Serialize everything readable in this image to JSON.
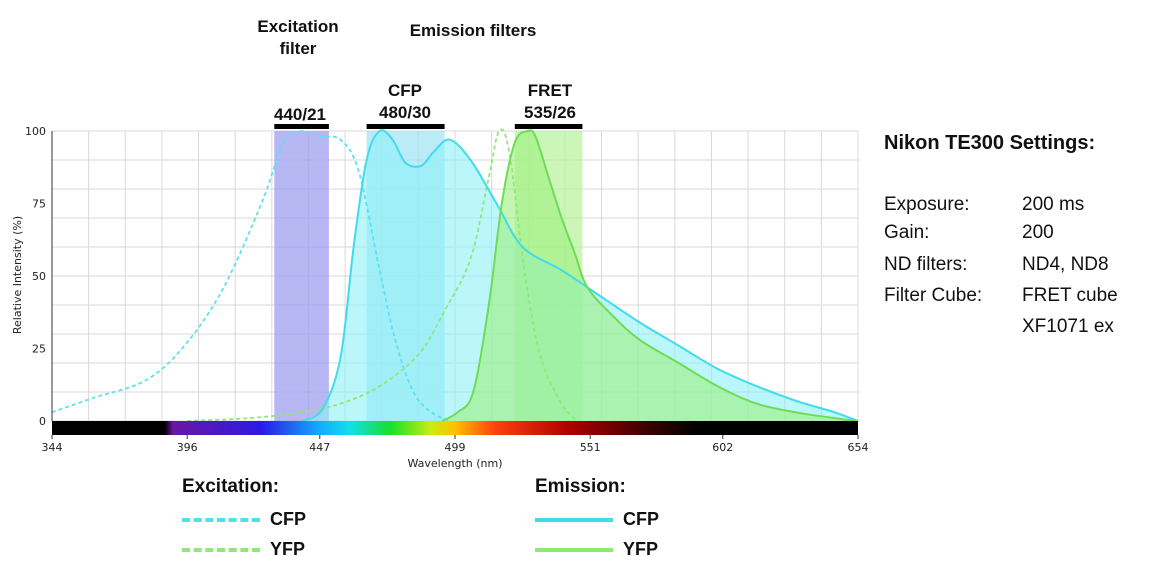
{
  "headers": {
    "excitation_filter_line1": "Excitation",
    "excitation_filter_line2": "filter",
    "emission_filters": "Emission filters",
    "ex_band_label": "440/21",
    "cfp_name": "CFP",
    "cfp_band": "480/30",
    "fret_name": "FRET",
    "fret_band": "535/26"
  },
  "settings": {
    "title": "Nikon TE300 Settings:",
    "rows": [
      {
        "key": "Exposure:",
        "value": "200 ms"
      },
      {
        "key": "Gain:",
        "value": "200"
      },
      {
        "key": "ND filters:",
        "value": "ND4, ND8"
      },
      {
        "key": "Filter Cube:",
        "value": "FRET cube"
      },
      {
        "key": "",
        "value": "XF1071 ex"
      }
    ]
  },
  "legend": {
    "excitation_title": "Excitation:",
    "emission_title": "Emission:",
    "excitation_items": [
      {
        "label": "CFP",
        "color": "#4fe0ea",
        "style": "dashed"
      },
      {
        "label": "YFP",
        "color": "#8ee87a",
        "style": "dashed"
      }
    ],
    "emission_items": [
      {
        "label": "CFP",
        "color": "#40dcea",
        "style": "solid"
      },
      {
        "label": "YFP",
        "color": "#8fe86f",
        "style": "solid"
      }
    ]
  },
  "colors": {
    "excitation_band": "#9f9ff0",
    "cfp_band": "#9fe3f5",
    "fret_band": "#b7f29a",
    "cfp_emission_fill": "#8ef0f6",
    "yfp_emission_fill": "#9cf07e",
    "grid": "#d9d9d9"
  },
  "chart_data": {
    "type": "line",
    "xlabel": "Wavelength (nm)",
    "ylabel": "Relative Intensity (%)",
    "xlim": [
      344,
      654
    ],
    "ylim": [
      0,
      100
    ],
    "x_ticks": [
      344,
      396,
      447,
      499,
      551,
      602,
      654
    ],
    "y_ticks": [
      0,
      25,
      50,
      75,
      100
    ],
    "grid": true,
    "filter_bands": [
      {
        "label": "440/21",
        "center": 440,
        "width": 21
      },
      {
        "label": "480/30",
        "center": 480,
        "width": 30
      },
      {
        "label": "535/26",
        "center": 535,
        "width": 26
      }
    ],
    "series": [
      {
        "name": "CFP",
        "kind": "excitation",
        "style": "dashed",
        "x": [
          344,
          360,
          380,
          395,
          410,
          425,
          433,
          440,
          447,
          455,
          462,
          470,
          476,
          483,
          490,
          497
        ],
        "y": [
          3,
          8,
          14,
          26,
          46,
          76,
          96,
          100,
          98,
          97,
          86,
          52,
          28,
          10,
          3,
          0
        ]
      },
      {
        "name": "YFP",
        "kind": "excitation",
        "style": "dashed",
        "x": [
          396,
          420,
          440,
          455,
          470,
          485,
          495,
          505,
          512,
          516,
          520,
          526,
          532,
          540,
          546
        ],
        "y": [
          0,
          1,
          3,
          6,
          12,
          23,
          38,
          56,
          84,
          100,
          92,
          50,
          22,
          6,
          0
        ]
      },
      {
        "name": "CFP",
        "kind": "emission",
        "style": "solid",
        "x": [
          440,
          448,
          455,
          460,
          465,
          470,
          475,
          480,
          486,
          491,
          497,
          505,
          515,
          525,
          540,
          555,
          570,
          585,
          600,
          615,
          630,
          645,
          654
        ],
        "y": [
          0,
          4,
          22,
          60,
          90,
          100,
          97,
          89,
          88,
          93,
          97,
          90,
          75,
          60,
          52,
          43,
          34,
          26,
          18,
          12,
          7,
          3,
          0
        ]
      },
      {
        "name": "YFP",
        "kind": "emission",
        "style": "solid",
        "x": [
          494,
          500,
          506,
          512,
          517,
          522,
          527,
          530,
          535,
          540,
          545,
          550,
          560,
          570,
          585,
          600,
          615,
          630,
          645,
          654
        ],
        "y": [
          0,
          3,
          10,
          40,
          75,
          96,
          100,
          98,
          84,
          70,
          58,
          46,
          36,
          28,
          20,
          12,
          6,
          3,
          1,
          0
        ]
      }
    ]
  }
}
